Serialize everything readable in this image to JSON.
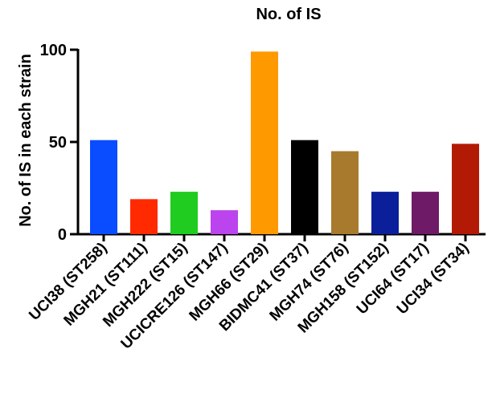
{
  "chart_data": {
    "type": "bar",
    "title": "No. of IS",
    "xlabel": "",
    "ylabel": "No. of IS in each strain",
    "ylim": [
      0,
      100
    ],
    "yticks": [
      0,
      50,
      100
    ],
    "grid": false,
    "categories": [
      "UCI38 (ST258)",
      "MGH21 (ST111)",
      "MGH222 (ST15)",
      "UCICRE126 (ST147)",
      "MGH66 (ST29)",
      "BIDMC41 (ST37)",
      "MGH74 (ST76)",
      "MGH158 (ST152)",
      "UCI64 (ST17)",
      "UCI34 (ST34)"
    ],
    "values": [
      51,
      19,
      23,
      13,
      99,
      51,
      45,
      23,
      23,
      49
    ],
    "colors": [
      "#0a4cff",
      "#ff2a00",
      "#1fcc1f",
      "#bb44ee",
      "#ff9900",
      "#000000",
      "#a87a2e",
      "#0a1f99",
      "#6e1a66",
      "#b31a05"
    ]
  }
}
